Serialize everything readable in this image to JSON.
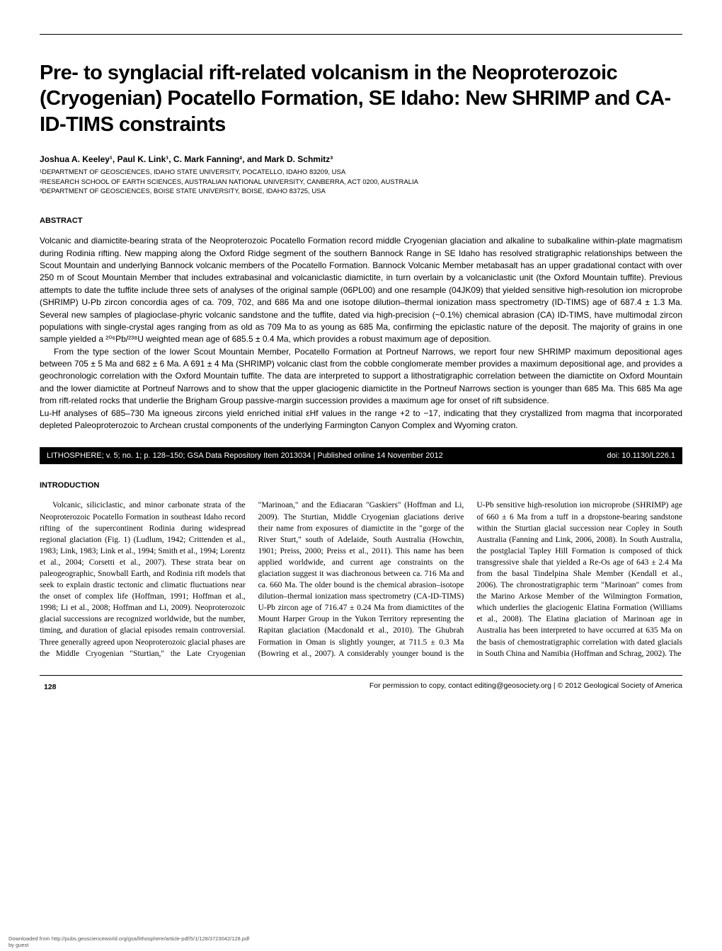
{
  "title": "Pre- to synglacial rift-related volcanism in the Neoproterozoic (Cryogenian) Pocatello Formation, SE Idaho: New SHRIMP and CA-ID-TIMS constraints",
  "authors": "Joshua A. Keeley¹, Paul K. Link¹, C. Mark Fanning², and Mark D. Schmitz³",
  "affil1": "¹DEPARTMENT OF GEOSCIENCES, IDAHO STATE UNIVERSITY, POCATELLO, IDAHO 83209, USA",
  "affil2": "²RESEARCH SCHOOL OF EARTH SCIENCES, AUSTRALIAN NATIONAL UNIVERSITY, CANBERRA, ACT 0200, AUSTRALIA",
  "affil3": "³DEPARTMENT OF GEOSCIENCES, BOISE STATE UNIVERSITY, BOISE, IDAHO 83725, USA",
  "abstract_head": "ABSTRACT",
  "abs_p1": "Volcanic and diamictite-bearing strata of the Neoproterozoic Pocatello Formation record middle Cryogenian glaciation and alkaline to subalkaline within-plate magmatism during Rodinia rifting. New mapping along the Oxford Ridge segment of the southern Bannock Range in SE Idaho has resolved stratigraphic relationships between the Scout Mountain and underlying Bannock volcanic members of the Pocatello Formation. Bannock Volcanic Member metabasalt has an upper gradational contact with over 250 m of Scout Mountain Member that includes extrabasinal and volcaniclastic diamictite, in turn overlain by a volcaniclastic unit (the Oxford Mountain tuffite). Previous attempts to date the tuffite include three sets of analyses of the original sample (06PL00) and one resample (04JK09) that yielded sensitive high-resolution ion microprobe (SHRIMP) U-Pb zircon concordia ages of ca. 709, 702, and 686 Ma and one isotope dilution–thermal ionization mass spectrometry (ID-TIMS) age of 687.4 ± 1.3 Ma. Several new samples of plagioclase-phyric volcanic sandstone and the tuffite, dated via high-precision (~0.1%) chemical abrasion (CA) ID-TIMS, have multimodal zircon populations with single-crystal ages ranging from as old as 709 Ma to as young as 685 Ma, confirming the epiclastic nature of the deposit. The majority of grains in one sample yielded a ²⁰⁶Pb/²³⁸U weighted mean age of 685.5 ± 0.4 Ma, which provides a robust maximum age of deposition.",
  "abs_p2": "From the type section of the lower Scout Mountain Member, Pocatello Formation at Portneuf Narrows, we report four new SHRIMP maximum depositional ages between 705 ± 5 Ma and 682 ± 6 Ma. A 691 ± 4 Ma (SHRIMP) volcanic clast from the cobble conglomerate member provides a maximum depositional age, and provides a geochronologic correlation with the Oxford Mountain tuffite. The data are interpreted to support a lithostratigraphic correlation between the diamictite on Oxford Mountain and the lower diamictite at Portneuf Narrows and to show that the upper glaciogenic diamictite in the Portneuf Narrows section is younger than 685 Ma. This 685 Ma age from rift-related rocks that underlie the Brigham Group passive-margin succession provides a maximum age for onset of rift subsidence.",
  "abs_p3": "Lu-Hf analyses of 685–730 Ma igneous zircons yield enriched initial εHf values in the range +2 to −17, indicating that they crystallized from magma that incorporated depleted Paleoproterozoic to Archean crustal components of the underlying Farmington Canyon Complex and Wyoming craton.",
  "bar_left": "LITHOSPHERE; v. 5; no. 1; p. 128–150; GSA Data Repository Item 2013034  |  Published online 14 November 2012",
  "bar_right": "doi: 10.1130/L226.1",
  "intro_head": "INTRODUCTION",
  "body_text": "Volcanic, siliciclastic, and minor carbonate strata of the Neoproterozoic Pocatello Formation in southeast Idaho record rifting of the supercontinent Rodinia during widespread regional glaciation (Fig. 1) (Ludlum, 1942; Crittenden et al., 1983; Link, 1983; Link et al., 1994; Smith et al., 1994; Lorentz et al., 2004; Corsetti et al., 2007). These strata bear on paleogeographic, Snowball Earth, and Rodinia rift models that seek to explain drastic tectonic and climatic fluctuations near the onset of complex life (Hoffman, 1991; Hoffman et al., 1998; Li et al., 2008; Hoffman and Li, 2009). Neoproterozoic glacial successions are recognized worldwide, but the number, timing, and duration of glacial episodes remain controversial. Three generally agreed upon Neoproterozoic glacial phases are the Middle Cryogenian \"Sturtian,\" the Late Cryogenian \"Marinoan,\" and the Ediacaran \"Gaskiers\" (Hoffman and Li, 2009). The Sturtian, Middle Cryogenian glaciations derive their name from exposures of diamictite in the \"gorge of the River Sturt,\" south of Adelaide, South Australia (Howchin, 1901; Preiss, 2000; Preiss et al., 2011). This name has been applied worldwide, and current age constraints on the glaciation suggest it was diachronous between ca. 716 Ma and ca. 660 Ma. The older bound is the chemical abrasion–isotope dilution–thermal ionization mass spectrometry (CA-ID-TIMS) U-Pb zircon age of 716.47 ± 0.24 Ma from diamictites of the Mount Harper Group in the Yukon Territory representing the Rapitan glaciation (Macdonald et al., 2010). The Ghubrah Formation in Oman is slightly younger, at 711.5 ± 0.3 Ma (Bowring et al., 2007). A considerably younger bound is the U-Pb sensitive high-resolution ion microprobe (SHRIMP) age of 660 ± 6 Ma from a tuff in a dropstone-bearing sandstone within the Sturtian glacial succession near Copley in South Australia (Fanning and Link, 2006, 2008). In South Australia, the postglacial Tapley Hill Formation is composed of thick transgressive shale that yielded a Re-Os age of 643 ± 2.4 Ma from the basal Tindelpina Shale Member (Kendall et al., 2006). The chronostratigraphic term \"Marinoan\" comes from the Marino Arkose Member of the Wilmington Formation, which underlies the glaciogenic Elatina Formation (Williams et al., 2008). The Elatina glaciation of Marinoan age in Australia has been interpreted to have occurred at 635 Ma on the basis of chemostratigraphic correlation with dated glacials in South China and Namibia (Hoffman and Schrag, 2002). The",
  "footer_page": "128",
  "footer_right": "For permission to copy, contact editing@geosociety.org  |  © 2012 Geological Society of America",
  "downloaded1": "Downloaded from http://pubs.geoscienceworld.org/gsa/lithosphere/article-pdf/5/1/128/3723042/128.pdf",
  "downloaded2": "by guest"
}
